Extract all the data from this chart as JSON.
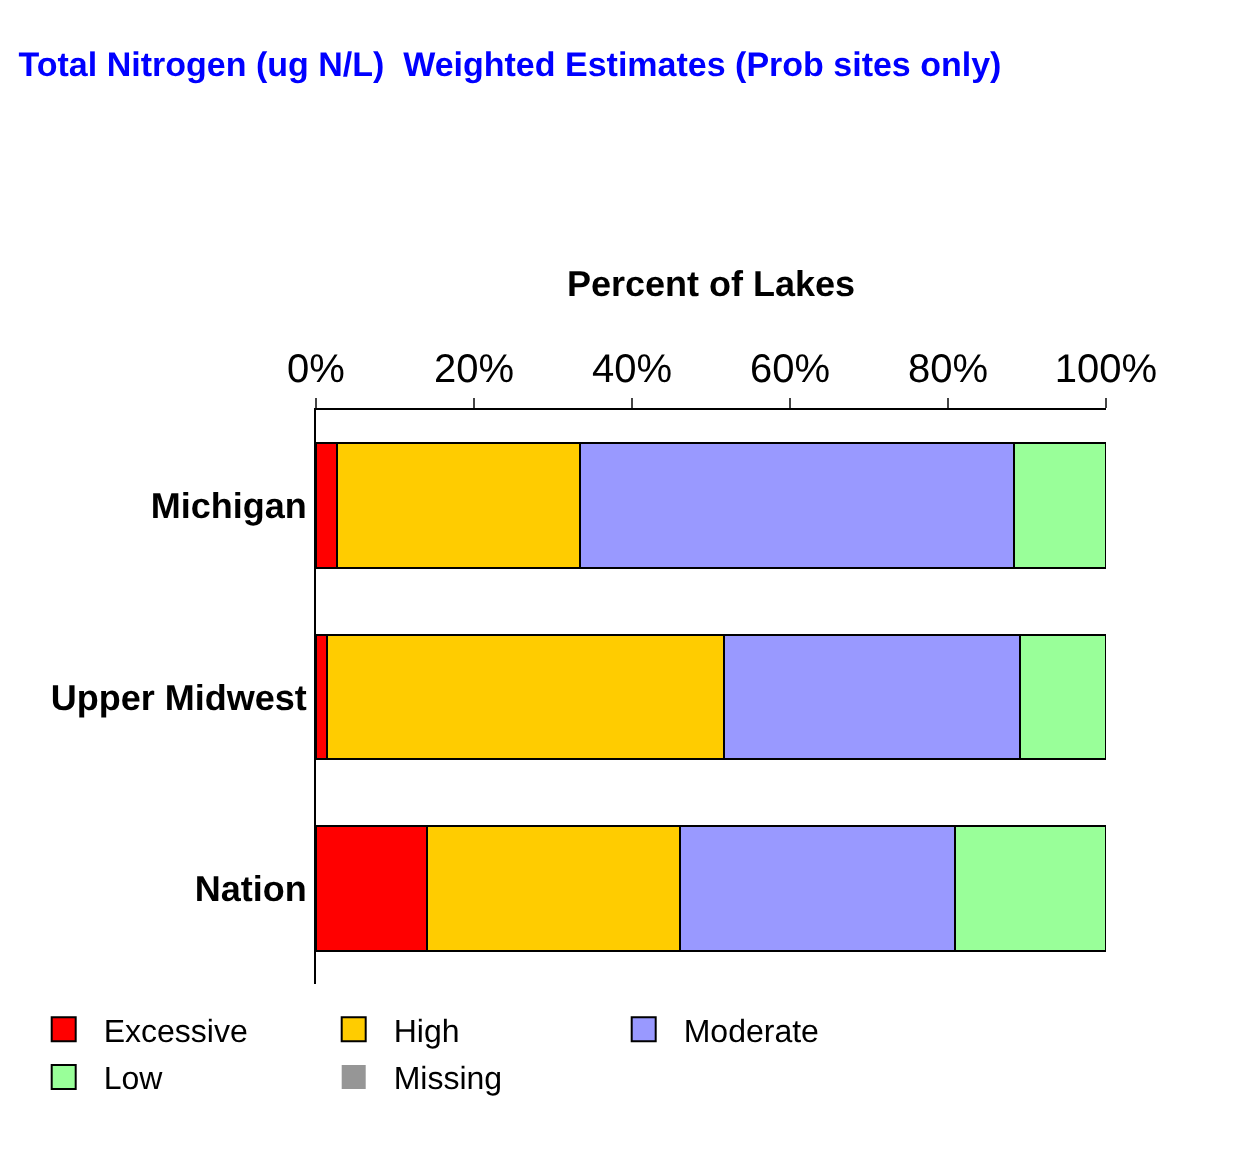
{
  "chart_data": {
    "type": "bar",
    "orientation": "horizontal",
    "stacked": true,
    "title": "Total Nitrogen (ug N/L)  Weighted Estimates (Prob sites only)",
    "xlabel": "Percent of Lakes",
    "categories": [
      "Michigan",
      "Upper Midwest",
      "Nation"
    ],
    "series": [
      {
        "name": "Excessive",
        "color": "#ff0000",
        "values": [
          2.7,
          1.4,
          14.1
        ]
      },
      {
        "name": "High",
        "color": "#ffcc00",
        "values": [
          30.7,
          50.3,
          32.0
        ]
      },
      {
        "name": "Moderate",
        "color": "#9999ff",
        "values": [
          55.0,
          37.4,
          34.8
        ]
      },
      {
        "name": "Low",
        "color": "#99ff99",
        "values": [
          11.6,
          10.9,
          19.1
        ]
      },
      {
        "name": "Missing",
        "color": "#969696",
        "values": [
          0,
          0,
          0
        ]
      }
    ],
    "xlim": [
      0,
      100
    ],
    "xticks": [
      {
        "value": 0,
        "label": "0%"
      },
      {
        "value": 20,
        "label": "20%"
      },
      {
        "value": 40,
        "label": "40%"
      },
      {
        "value": 60,
        "label": "60%"
      },
      {
        "value": 80,
        "label": "80%"
      },
      {
        "value": 100,
        "label": "100%"
      }
    ],
    "legend": "bottom"
  }
}
